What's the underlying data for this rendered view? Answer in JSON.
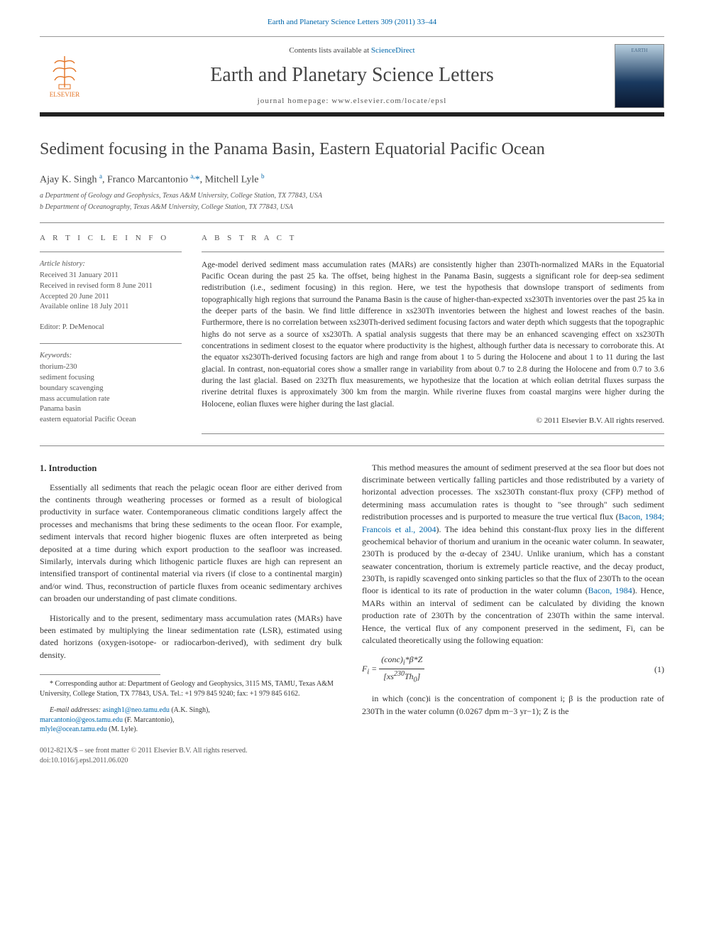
{
  "top": {
    "citation_link": "Earth and Planetary Science Letters 309 (2011) 33–44",
    "contents_prefix": "Contents lists available at ",
    "contents_link": "ScienceDirect",
    "journal_name": "Earth and Planetary Science Letters",
    "homepage_line": "journal homepage: www.elsevier.com/locate/epsl",
    "elsevier_label": "ELSEVIER",
    "cover_label": "EARTH"
  },
  "article": {
    "title": "Sediment focusing in the Panama Basin, Eastern Equatorial Pacific Ocean",
    "authors_html": "Ajay K. Singh <sup>a</sup>, Franco Marcantonio <sup>a,</sup><span class='star'>*</span>, Mitchell Lyle <sup>b</sup>",
    "affiliations": [
      "a Department of Geology and Geophysics, Texas A&M University, College Station, TX 77843, USA",
      "b Department of Oceanography, Texas A&M University, College Station, TX 77843, USA"
    ]
  },
  "info": {
    "heading": "A R T I C L E   I N F O",
    "history_label": "Article history:",
    "history": [
      "Received 31 January 2011",
      "Received in revised form 8 June 2011",
      "Accepted 20 June 2011",
      "Available online 18 July 2011"
    ],
    "editor_line": "Editor: P. DeMenocal",
    "keywords_label": "Keywords:",
    "keywords": [
      "thorium-230",
      "sediment focusing",
      "boundary scavenging",
      "mass accumulation rate",
      "Panama basin",
      "eastern equatorial Pacific Ocean"
    ]
  },
  "abstract": {
    "heading": "A B S T R A C T",
    "text": "Age-model derived sediment mass accumulation rates (MARs) are consistently higher than 230Th-normalized MARs in the Equatorial Pacific Ocean during the past 25 ka. The offset, being highest in the Panama Basin, suggests a significant role for deep-sea sediment redistribution (i.e., sediment focusing) in this region. Here, we test the hypothesis that downslope transport of sediments from topographically high regions that surround the Panama Basin is the cause of higher-than-expected xs230Th inventories over the past 25 ka in the deeper parts of the basin. We find little difference in xs230Th inventories between the highest and lowest reaches of the basin. Furthermore, there is no correlation between xs230Th-derived sediment focusing factors and water depth which suggests that the topographic highs do not serve as a source of xs230Th. A spatial analysis suggests that there may be an enhanced scavenging effect on xs230Th concentrations in sediment closest to the equator where productivity is the highest, although further data is necessary to corroborate this. At the equator xs230Th-derived focusing factors are high and range from about 1 to 5 during the Holocene and about 1 to 11 during the last glacial. In contrast, non-equatorial cores show a smaller range in variability from about 0.7 to 2.8 during the Holocene and from 0.7 to 3.6 during the last glacial. Based on 232Th flux measurements, we hypothesize that the location at which eolian detrital fluxes surpass the riverine detrital fluxes is approximately 300 km from the margin. While riverine fluxes from coastal margins were higher during the Holocene, eolian fluxes were higher during the last glacial.",
    "copyright": "© 2011 Elsevier B.V. All rights reserved."
  },
  "body": {
    "section_heading": "1. Introduction",
    "left_paras": [
      "Essentially all sediments that reach the pelagic ocean floor are either derived from the continents through weathering processes or formed as a result of biological productivity in surface water. Contemporaneous climatic conditions largely affect the processes and mechanisms that bring these sediments to the ocean floor. For example, sediment intervals that record higher biogenic fluxes are often interpreted as being deposited at a time during which export production to the seafloor was increased. Similarly, intervals during which lithogenic particle fluxes are high can represent an intensified transport of continental material via rivers (if close to a continental margin) and/or wind. Thus, reconstruction of particle fluxes from oceanic sedimentary archives can broaden our understanding of past climate conditions.",
      "Historically and to the present, sedimentary mass accumulation rates (MARs) have been estimated by multiplying the linear sedimentation rate (LSR), estimated using dated horizons (oxygen-isotope- or radiocarbon-derived), with sediment dry bulk density."
    ],
    "right_paras": [
      "This method measures the amount of sediment preserved at the sea floor but does not discriminate between vertically falling particles and those redistributed by a variety of horizontal advection processes. The xs230Th constant-flux proxy (CFP) method of determining mass accumulation rates is thought to \"see through\" such sediment redistribution processes and is purported to measure the true vertical flux (Bacon, 1984; Francois et al., 2004). The idea behind this constant-flux proxy lies in the different geochemical behavior of thorium and uranium in the oceanic water column. In seawater, 230Th is produced by the α-decay of 234U. Unlike uranium, which has a constant seawater concentration, thorium is extremely particle reactive, and the decay product, 230Th, is rapidly scavenged onto sinking particles so that the flux of 230Th to the ocean floor is identical to its rate of production in the water column (Bacon, 1984). Hence, MARs within an interval of sediment can be calculated by dividing the known production rate of 230Th by the concentration of 230Th within the same interval. Hence, the vertical flux of any component preserved in the sediment, Fi, can be calculated theoretically using the following equation:"
    ],
    "equation": "F_i = (conc)_i * β * Z / [xs^{230}Th_0]",
    "equation_number": "(1)",
    "right_after_eq": "in which (conc)i is the concentration of component i; β is the production rate of 230Th in the water column (0.0267 dpm m−3 yr−1); Z is the"
  },
  "footnotes": {
    "corr": "* Corresponding author at: Department of Geology and Geophysics, 3115 MS, TAMU, Texas A&M University, College Station, TX 77843, USA. Tel.: +1 979 845 9240; fax: +1 979 845 6162.",
    "email_label": "E-mail addresses: ",
    "emails": [
      {
        "addr": "asingh1@neo.tamu.edu",
        "who": "(A.K. Singh),"
      },
      {
        "addr": "marcantonio@geos.tamu.edu",
        "who": "(F. Marcantonio),"
      },
      {
        "addr": "mlyle@ocean.tamu.edu",
        "who": "(M. Lyle)."
      }
    ]
  },
  "bottom": {
    "line1": "0012-821X/$ – see front matter © 2011 Elsevier B.V. All rights reserved.",
    "doi": "doi:10.1016/j.epsl.2011.06.020"
  },
  "colors": {
    "link": "#0066aa",
    "text": "#333333",
    "rule": "#888888",
    "orange": "#e37222"
  }
}
